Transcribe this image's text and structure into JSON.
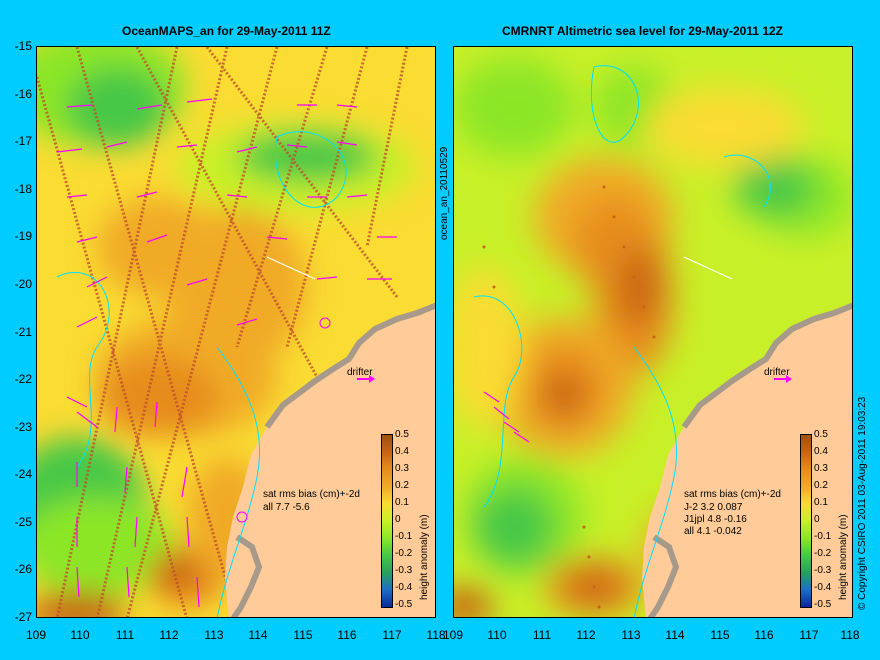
{
  "left_panel": {
    "title": "OceanMAPS_an for 29-May-2011 11Z",
    "side_label": "ocean_an_20110529",
    "drifter_label": "drifter",
    "stats": [
      "sat rms bias (cm)+-2d",
      "all 7.7 -5.6"
    ]
  },
  "right_panel": {
    "title": "CMRNRT Altimetric sea level  for 29-May-2011 12Z",
    "drifter_label": "drifter",
    "stats": [
      "sat rms bias (cm)+-2d",
      "J-2   3.2 0.087",
      "J1jpl 4.8 -0.16",
      "all 4.1 -0.042"
    ]
  },
  "y_ticks": [
    "-15",
    "-16",
    "-17",
    "-18",
    "-19",
    "-20",
    "-21",
    "-22",
    "-23",
    "-24",
    "-25",
    "-26",
    "-27"
  ],
  "x_ticks": [
    "109",
    "110",
    "111",
    "112",
    "113",
    "114",
    "115",
    "116",
    "117",
    "118"
  ],
  "colorbar": {
    "label": "height anomaly (m)",
    "ticks": [
      "0.5",
      "0.4",
      "0.3",
      "0.2",
      "0.1",
      "0",
      "-0.1",
      "-0.2",
      "-0.3",
      "-0.4",
      "-0.5"
    ],
    "colors": [
      "#a05010",
      "#c86414",
      "#e68c1e",
      "#f0aa28",
      "#fadc32",
      "#c8f028",
      "#8ce628",
      "#46c846",
      "#28a05a",
      "#1e6ec8",
      "#0a2896"
    ]
  },
  "copyright": "© Copyright CSIRO 2011  03-Aug-2011 19:03:23",
  "colors": {
    "background": "#00ccff",
    "land": "#ffcc99",
    "coast_grey": "#a89a8a",
    "arrow": "#ff00ff",
    "contour": "#00e0ff"
  }
}
